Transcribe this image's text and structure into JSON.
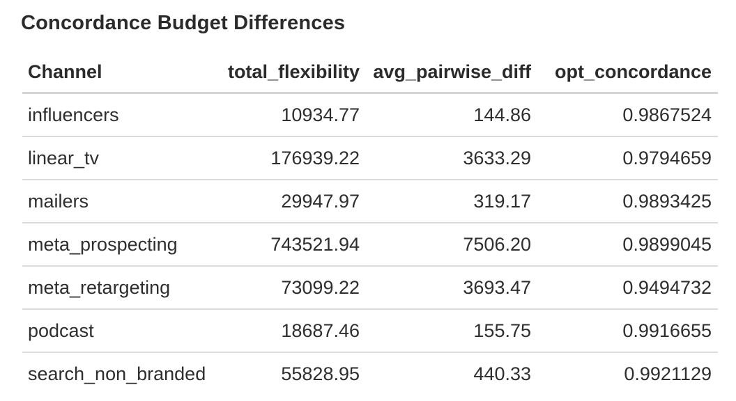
{
  "title": "Concordance Budget Differences",
  "colors": {
    "background": "#ffffff",
    "text": "#2b2b2b",
    "header_rule": "#d4d4d4",
    "row_rule": "#dbdbdb"
  },
  "chart_data": {
    "type": "table",
    "title": "Concordance Budget Differences",
    "columns": [
      "Channel",
      "total_flexibility",
      "avg_pairwise_diff",
      "opt_concordance"
    ],
    "column_alignments": [
      "left",
      "right",
      "right",
      "right"
    ],
    "rows": [
      [
        "influencers",
        "10934.77",
        "144.86",
        "0.9867524"
      ],
      [
        "linear_tv",
        "176939.22",
        "3633.29",
        "0.9794659"
      ],
      [
        "mailers",
        "29947.97",
        "319.17",
        "0.9893425"
      ],
      [
        "meta_prospecting",
        "743521.94",
        "7506.20",
        "0.9899045"
      ],
      [
        "meta_retargeting",
        "73099.22",
        "3693.47",
        "0.9494732"
      ],
      [
        "podcast",
        "18687.46",
        "155.75",
        "0.9916655"
      ],
      [
        "search_non_branded",
        "55828.95",
        "440.33",
        "0.9921129"
      ]
    ]
  }
}
